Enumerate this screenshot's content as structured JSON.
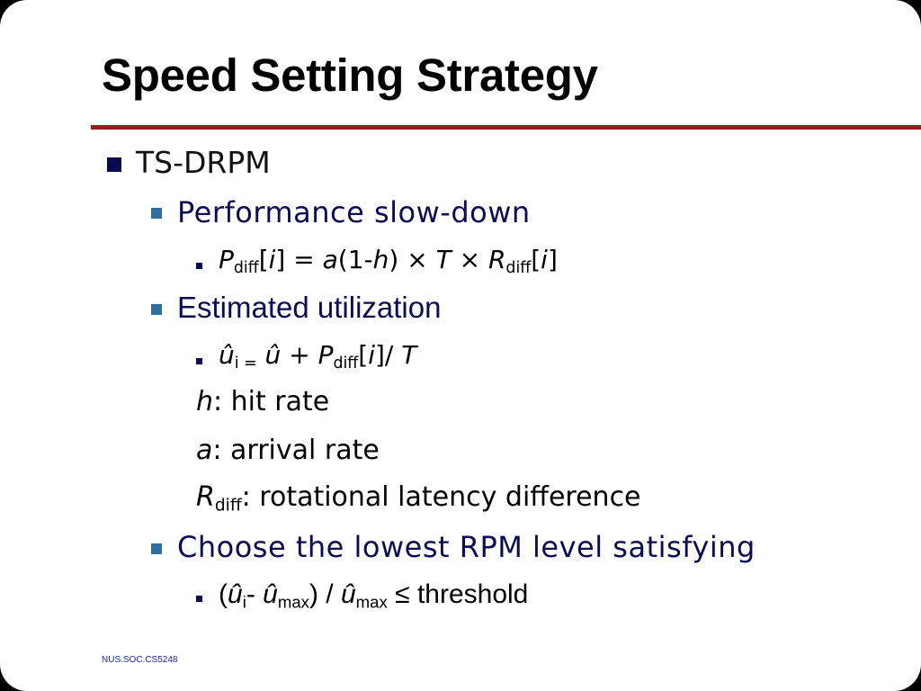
{
  "slide": {
    "title": "Speed Setting Strategy",
    "footer": "NUS.SOC.CS5248",
    "accent_rule_color": "#9b1b1b",
    "bullets": {
      "l1_tsdrpm": "TS-DRPM",
      "l2_perf": "Performance slow-down",
      "formula_pdiff": {
        "p": "P",
        "diff": "diff",
        "br_open": "[",
        "i": "i",
        "br_close": "]",
        "eq": " = ",
        "a": "a",
        "one_minus": "(1-",
        "h": "h",
        "close_times": ") × ",
        "t": "T",
        "times": " × ",
        "r": "R",
        "diff2": "diff",
        "br2_open": "[",
        "i2": "i",
        "br2_close": "]"
      },
      "l2_util": "Estimated utilization",
      "formula_util": {
        "u_hat": "û",
        "sub_i_eq": "i =",
        "plus": " û + ",
        "p": "P",
        "diff": "diff",
        "br_open": "[",
        "i": "i",
        "br_close": "]/ ",
        "t": "T"
      },
      "def_h": {
        "var": "h",
        "text": ": hit rate"
      },
      "def_a": {
        "var": "a",
        "text": ": arrival rate"
      },
      "def_r": {
        "var": "R",
        "sub": "diff",
        "text": ": rotational latency difference"
      },
      "l2_choose": "Choose the lowest RPM level satisfying",
      "formula_threshold": {
        "open": "(",
        "u_hat": "û",
        "sub_i": "i",
        "minus": "- ",
        "u_hat2": "û",
        "sub_max": "max",
        "close_div": ") / ",
        "u_hat3": "û",
        "sub_max2": "max",
        "leq": " ≤ threshold"
      }
    }
  }
}
